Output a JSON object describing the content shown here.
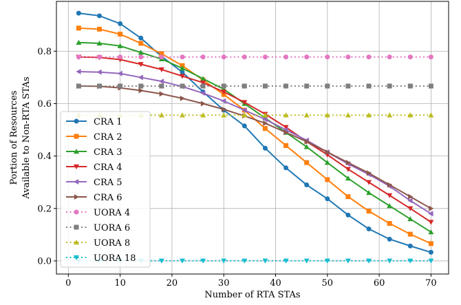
{
  "chart_data": {
    "type": "line",
    "xlabel": "Number of RTA STAs",
    "ylabel": [
      "Portion of Resources",
      "Available to Non-RTA STAs"
    ],
    "x": [
      2,
      6,
      10,
      14,
      18,
      22,
      26,
      30,
      34,
      38,
      42,
      46,
      50,
      54,
      58,
      62,
      66,
      70
    ],
    "xlim": [
      -2.3,
      73.4
    ],
    "xticks": [
      0,
      10,
      20,
      30,
      40,
      50,
      60,
      70
    ],
    "ylim": [
      -0.05,
      0.99
    ],
    "yticks": [
      {
        "value": 0,
        "label": "0.0"
      },
      0.2,
      0.4,
      0.6,
      0.8
    ],
    "grid": true,
    "legend": "lower left",
    "series": [
      {
        "name": "CRA 1",
        "color": "#1f77b4",
        "marker": "circle",
        "linestyle": "solid",
        "values": [
          0.945,
          0.935,
          0.905,
          0.85,
          0.78,
          0.72,
          0.645,
          0.575,
          0.515,
          0.43,
          0.355,
          0.29,
          0.237,
          0.175,
          0.122,
          0.083,
          0.057,
          0.033
        ]
      },
      {
        "name": "CRA 2",
        "color": "#ff7f0e",
        "marker": "square",
        "linestyle": "solid",
        "values": [
          0.888,
          0.884,
          0.865,
          0.83,
          0.79,
          0.745,
          0.69,
          0.635,
          0.575,
          0.505,
          0.44,
          0.375,
          0.31,
          0.245,
          0.19,
          0.143,
          0.102,
          0.066
        ]
      },
      {
        "name": "CRA 3",
        "color": "#2ca02c",
        "marker": "triangle-up",
        "linestyle": "solid",
        "values": [
          0.833,
          0.83,
          0.82,
          0.795,
          0.77,
          0.735,
          0.695,
          0.655,
          0.6,
          0.545,
          0.49,
          0.435,
          0.375,
          0.315,
          0.26,
          0.21,
          0.16,
          0.11
        ]
      },
      {
        "name": "CRA 4",
        "color": "#d62728",
        "marker": "triangle-down",
        "linestyle": "solid",
        "values": [
          0.778,
          0.776,
          0.768,
          0.75,
          0.73,
          0.705,
          0.68,
          0.645,
          0.605,
          0.56,
          0.51,
          0.455,
          0.405,
          0.35,
          0.3,
          0.25,
          0.2,
          0.148
        ]
      },
      {
        "name": "CRA 5",
        "color": "#9467bd",
        "marker": "triangle-left",
        "linestyle": "solid",
        "values": [
          0.722,
          0.72,
          0.715,
          0.7,
          0.685,
          0.665,
          0.64,
          0.61,
          0.575,
          0.54,
          0.5,
          0.46,
          0.415,
          0.37,
          0.33,
          0.285,
          0.23,
          0.18
        ]
      },
      {
        "name": "CRA 6",
        "color": "#8c564b",
        "marker": "triangle-right",
        "linestyle": "solid",
        "values": [
          0.667,
          0.666,
          0.66,
          0.65,
          0.637,
          0.62,
          0.6,
          0.578,
          0.553,
          0.525,
          0.49,
          0.455,
          0.415,
          0.375,
          0.335,
          0.29,
          0.245,
          0.2
        ]
      },
      {
        "name": "UORA 4",
        "color": "#e377c2",
        "marker": "circle",
        "linestyle": "dotted",
        "values": [
          0.778,
          0.778,
          0.778,
          0.778,
          0.778,
          0.778,
          0.778,
          0.778,
          0.778,
          0.778,
          0.778,
          0.778,
          0.778,
          0.778,
          0.778,
          0.778,
          0.778,
          0.778
        ]
      },
      {
        "name": "UORA 6",
        "color": "#7f7f7f",
        "marker": "square",
        "linestyle": "dotted",
        "values": [
          0.667,
          0.667,
          0.667,
          0.667,
          0.667,
          0.667,
          0.667,
          0.667,
          0.667,
          0.667,
          0.667,
          0.667,
          0.667,
          0.667,
          0.667,
          0.667,
          0.667,
          0.667
        ]
      },
      {
        "name": "UORA 8",
        "color": "#bcbd22",
        "marker": "triangle-up",
        "linestyle": "dotted",
        "values": [
          0.556,
          0.556,
          0.556,
          0.556,
          0.556,
          0.556,
          0.556,
          0.556,
          0.556,
          0.556,
          0.556,
          0.556,
          0.556,
          0.556,
          0.556,
          0.556,
          0.556,
          0.556
        ]
      },
      {
        "name": "UORA 18",
        "color": "#17becf",
        "marker": "triangle-down",
        "linestyle": "dotted",
        "values": [
          0.0005,
          0.0005,
          0.0005,
          0.0005,
          0.0005,
          0.0005,
          0.0005,
          0.0005,
          0.0005,
          0.0005,
          0.0005,
          0.0005,
          0.0005,
          0.0005,
          0.0005,
          0.0005,
          0.0005,
          0.0005
        ]
      }
    ]
  }
}
